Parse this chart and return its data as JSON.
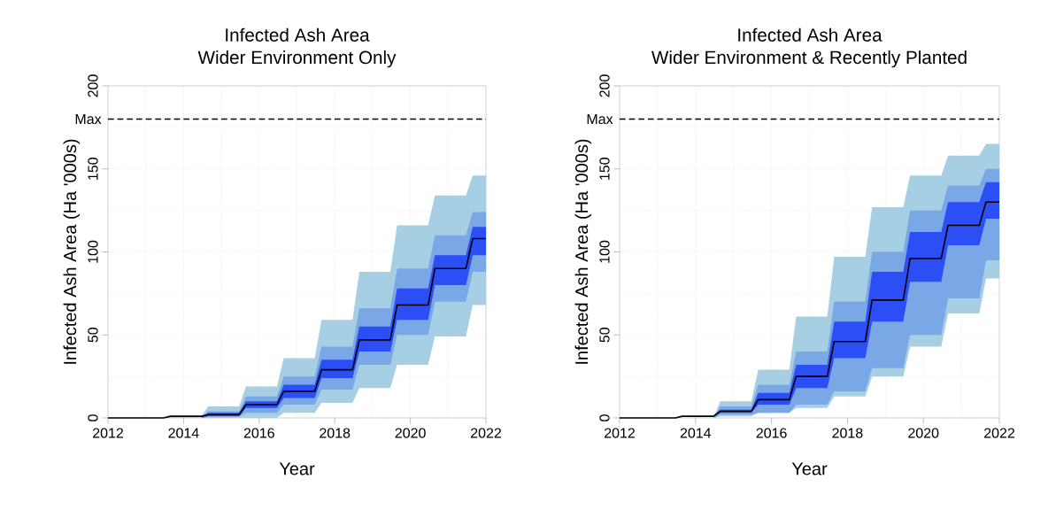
{
  "chart_data": [
    {
      "type": "line",
      "title": "Infected Ash Area",
      "subtitle": "Wider Environment Only",
      "xlabel": "Year",
      "ylabel": "Infected Ash Area (Ha '000s)",
      "x": [
        2012,
        2013.47,
        2013.65,
        2014.47,
        2014.65,
        2015.47,
        2015.65,
        2016.47,
        2016.65,
        2017.47,
        2017.65,
        2018.47,
        2018.65,
        2019.47,
        2019.65,
        2020.47,
        2020.65,
        2021.47,
        2021.65,
        2022
      ],
      "xlim": [
        2012,
        2022
      ],
      "xticks": [
        2012,
        2014,
        2016,
        2018,
        2020,
        2022
      ],
      "ylim": [
        0,
        200
      ],
      "yticks": [
        0,
        50,
        100,
        150,
        200
      ],
      "grid": true,
      "ref_lines": [
        {
          "axis": "y",
          "value": 180,
          "label": "Max",
          "color": "#000000",
          "line_style": "dashed"
        }
      ],
      "series": [
        {
          "color": "#a6cfe3",
          "values": [
            null,
            null,
            null,
            null,
            null,
            null,
            null,
            null,
            null,
            null,
            null,
            null,
            null,
            null,
            null,
            null,
            null,
            null,
            null,
            null
          ],
          "lower": [
            0,
            0,
            0,
            0,
            0,
            0,
            0,
            0,
            3,
            3,
            9,
            9,
            18,
            18,
            32,
            32,
            49,
            49,
            68,
            68
          ],
          "upper": [
            0,
            0,
            1,
            1,
            7,
            7,
            19,
            19,
            36,
            36,
            59,
            59,
            88,
            88,
            116,
            116,
            134,
            134,
            146,
            146
          ]
        },
        {
          "color": "#7aa7e6",
          "values": [
            null,
            null,
            null,
            null,
            null,
            null,
            null,
            null,
            null,
            null,
            null,
            null,
            null,
            null,
            null,
            null,
            null,
            null,
            null,
            null
          ],
          "lower": [
            0,
            0,
            0,
            0,
            1,
            1,
            3,
            3,
            8,
            8,
            17,
            17,
            32,
            32,
            50,
            50,
            70,
            70,
            88,
            88
          ],
          "upper": [
            0,
            0,
            0,
            0,
            4,
            4,
            13,
            13,
            25,
            25,
            43,
            43,
            66,
            66,
            90,
            90,
            110,
            110,
            124,
            124
          ]
        },
        {
          "color": "#2b4ff5",
          "values": [
            null,
            null,
            null,
            null,
            null,
            null,
            null,
            null,
            null,
            null,
            null,
            null,
            null,
            null,
            null,
            null,
            null,
            null,
            null,
            null
          ],
          "lower": [
            0,
            0,
            0,
            0,
            1,
            1,
            6,
            6,
            12,
            12,
            24,
            24,
            40,
            40,
            59,
            59,
            80,
            80,
            98,
            98
          ],
          "upper": [
            0,
            0,
            0,
            0,
            3,
            3,
            10,
            10,
            20,
            20,
            35,
            35,
            55,
            55,
            78,
            78,
            98,
            98,
            115,
            115
          ]
        },
        {
          "color": "#000000",
          "values": [
            0,
            0,
            1,
            1,
            2,
            2,
            8,
            8,
            16,
            16,
            29,
            29,
            47,
            47,
            68,
            68,
            90,
            90,
            108,
            108
          ]
        }
      ]
    },
    {
      "type": "line",
      "title": "Infected Ash Area",
      "subtitle": "Wider Environment & Recently Planted",
      "xlabel": "Year",
      "ylabel": "Infected Ash Area (Ha '000s)",
      "x": [
        2012,
        2013.47,
        2013.65,
        2014.47,
        2014.65,
        2015.47,
        2015.65,
        2016.47,
        2016.65,
        2017.47,
        2017.65,
        2018.47,
        2018.65,
        2019.47,
        2019.65,
        2020.47,
        2020.65,
        2021.47,
        2021.65,
        2022
      ],
      "xlim": [
        2012,
        2022
      ],
      "xticks": [
        2012,
        2014,
        2016,
        2018,
        2020,
        2022
      ],
      "ylim": [
        0,
        200
      ],
      "yticks": [
        0,
        50,
        100,
        150,
        200
      ],
      "grid": true,
      "ref_lines": [
        {
          "axis": "y",
          "value": 180,
          "label": "Max",
          "color": "#000000",
          "line_style": "dashed"
        }
      ],
      "series": [
        {
          "color": "#a6cfe3",
          "values": [
            null,
            null,
            null,
            null,
            null,
            null,
            null,
            null,
            null,
            null,
            null,
            null,
            null,
            null,
            null,
            null,
            null,
            null,
            null,
            null
          ],
          "lower": [
            0,
            0,
            0,
            0,
            1,
            1,
            3,
            3,
            6,
            6,
            13,
            13,
            25,
            25,
            43,
            43,
            63,
            63,
            84,
            84
          ],
          "upper": [
            0,
            0,
            0,
            0,
            10,
            10,
            29,
            29,
            61,
            61,
            97,
            97,
            127,
            127,
            146,
            146,
            158,
            158,
            165,
            165
          ]
        },
        {
          "color": "#7aa7e6",
          "values": [
            null,
            null,
            null,
            null,
            null,
            null,
            null,
            null,
            null,
            null,
            null,
            null,
            null,
            null,
            null,
            null,
            null,
            null,
            null,
            null
          ],
          "lower": [
            0,
            0,
            0,
            0,
            2,
            2,
            3,
            3,
            8,
            8,
            16,
            16,
            30,
            30,
            50,
            50,
            72,
            72,
            95,
            95
          ],
          "upper": [
            0,
            0,
            0,
            0,
            7,
            7,
            20,
            20,
            40,
            40,
            70,
            70,
            100,
            100,
            125,
            125,
            140,
            140,
            150,
            150
          ]
        },
        {
          "color": "#2b4ff5",
          "values": [
            null,
            null,
            null,
            null,
            null,
            null,
            null,
            null,
            null,
            null,
            null,
            null,
            null,
            null,
            null,
            null,
            null,
            null,
            null,
            null
          ],
          "lower": [
            0,
            0,
            0,
            0,
            3,
            3,
            8,
            8,
            18,
            18,
            36,
            36,
            58,
            58,
            82,
            82,
            104,
            104,
            120,
            120
          ],
          "upper": [
            0,
            0,
            0,
            0,
            5,
            5,
            15,
            15,
            32,
            32,
            58,
            58,
            88,
            88,
            112,
            112,
            130,
            130,
            142,
            142
          ]
        },
        {
          "color": "#000000",
          "values": [
            0,
            0,
            1,
            1,
            4,
            4,
            11,
            11,
            25,
            25,
            46,
            46,
            71,
            71,
            96,
            96,
            116,
            116,
            130,
            130
          ]
        }
      ]
    }
  ]
}
